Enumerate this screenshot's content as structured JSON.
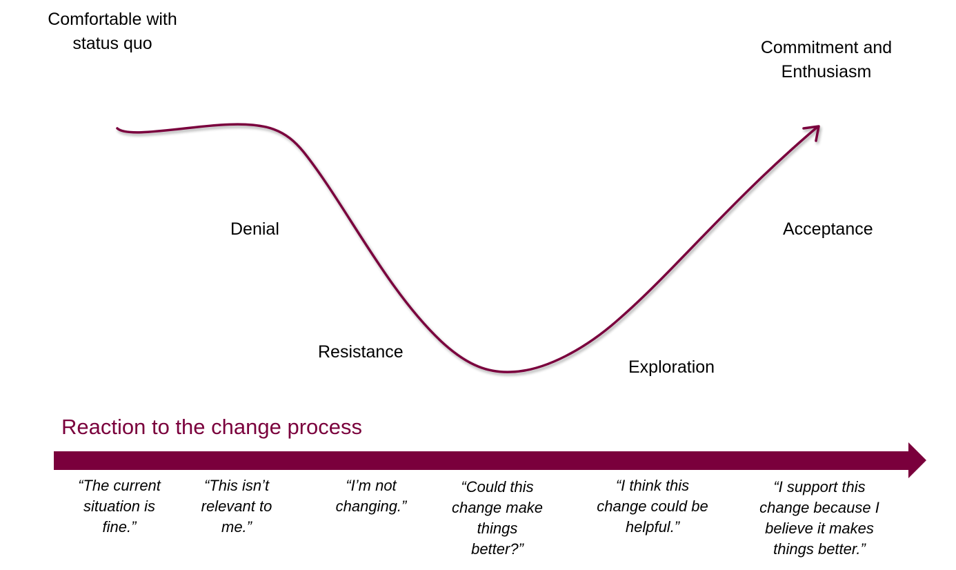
{
  "colors": {
    "accent": "#7a003c",
    "text": "#000000"
  },
  "stages": {
    "start": [
      "Comfortable with",
      "status quo"
    ],
    "end": [
      "Commitment and",
      "Enthusiasm"
    ],
    "denial": "Denial",
    "resistance": "Resistance",
    "exploration": "Exploration",
    "acceptance": "Acceptance"
  },
  "axis_title": "Reaction to the change process",
  "quotes": [
    [
      "“The current",
      "situation is",
      "fine.”"
    ],
    [
      "“This isn’t",
      "relevant to",
      "me.”"
    ],
    [
      "“I’m not",
      "changing.”"
    ],
    [
      "“Could this",
      "change make",
      "things",
      "better?”"
    ],
    [
      "“I think this",
      "change could be",
      "helpful.”"
    ],
    [
      "“I support this",
      "change because I",
      "believe it makes",
      "things better.”"
    ]
  ]
}
